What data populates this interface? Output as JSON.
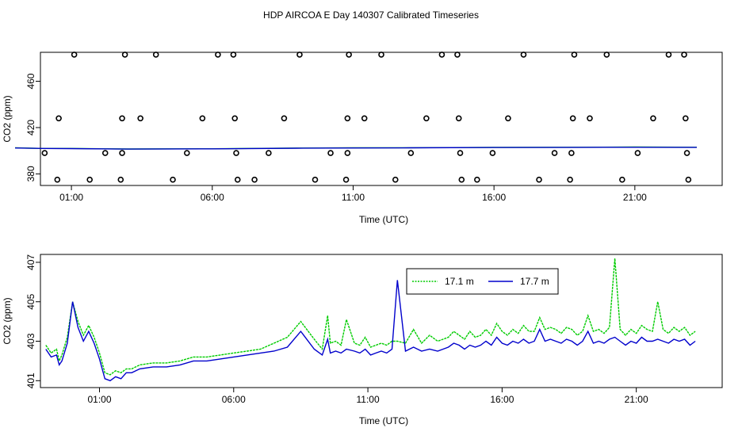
{
  "title": "HDP AIRCOA E  Day 140307  Calibrated Timeseries",
  "chart_data": [
    {
      "type": "scatter",
      "xlabel": "Time (UTC)",
      "ylabel": "CO2 (ppm)",
      "x_ticks": [
        {
          "hour": 1,
          "label": "01:00"
        },
        {
          "hour": 6,
          "label": "06:00"
        },
        {
          "hour": 11,
          "label": "11:00"
        },
        {
          "hour": 16,
          "label": "16:00"
        },
        {
          "hour": 21,
          "label": "21:00"
        }
      ],
      "y_ticks": [
        380,
        420,
        460
      ],
      "x_range_hours": [
        -0.1,
        24.1
      ],
      "y_range": [
        370,
        485
      ],
      "grid": false,
      "calibration_points": [
        {
          "hour": 0.5,
          "co2": 375
        },
        {
          "hour": 0.05,
          "co2": 398
        },
        {
          "hour": 0.55,
          "co2": 428
        },
        {
          "hour": 1.1,
          "co2": 483
        },
        {
          "hour": 1.65,
          "co2": 375
        },
        {
          "hour": 2.2,
          "co2": 398
        },
        {
          "hour": 2.75,
          "co2": 375
        },
        {
          "hour": 2.8,
          "co2": 398
        },
        {
          "hour": 2.8,
          "co2": 428
        },
        {
          "hour": 2.9,
          "co2": 483
        },
        {
          "hour": 3.45,
          "co2": 428
        },
        {
          "hour": 4.0,
          "co2": 483
        },
        {
          "hour": 4.6,
          "co2": 375
        },
        {
          "hour": 5.1,
          "co2": 398
        },
        {
          "hour": 5.65,
          "co2": 428
        },
        {
          "hour": 6.2,
          "co2": 483
        },
        {
          "hour": 6.75,
          "co2": 483
        },
        {
          "hour": 6.8,
          "co2": 428
        },
        {
          "hour": 6.85,
          "co2": 398
        },
        {
          "hour": 6.9,
          "co2": 375
        },
        {
          "hour": 7.5,
          "co2": 375
        },
        {
          "hour": 8.0,
          "co2": 398
        },
        {
          "hour": 8.55,
          "co2": 428
        },
        {
          "hour": 9.1,
          "co2": 483
        },
        {
          "hour": 9.65,
          "co2": 375
        },
        {
          "hour": 10.2,
          "co2": 398
        },
        {
          "hour": 10.75,
          "co2": 375
        },
        {
          "hour": 10.8,
          "co2": 398
        },
        {
          "hour": 10.8,
          "co2": 428
        },
        {
          "hour": 10.85,
          "co2": 483
        },
        {
          "hour": 11.4,
          "co2": 428
        },
        {
          "hour": 12.0,
          "co2": 483
        },
        {
          "hour": 12.5,
          "co2": 375
        },
        {
          "hour": 13.05,
          "co2": 398
        },
        {
          "hour": 13.6,
          "co2": 428
        },
        {
          "hour": 14.15,
          "co2": 483
        },
        {
          "hour": 14.7,
          "co2": 483
        },
        {
          "hour": 14.75,
          "co2": 428
        },
        {
          "hour": 14.8,
          "co2": 398
        },
        {
          "hour": 14.85,
          "co2": 375
        },
        {
          "hour": 15.4,
          "co2": 375
        },
        {
          "hour": 15.95,
          "co2": 398
        },
        {
          "hour": 16.5,
          "co2": 428
        },
        {
          "hour": 17.05,
          "co2": 483
        },
        {
          "hour": 17.6,
          "co2": 375
        },
        {
          "hour": 18.15,
          "co2": 398
        },
        {
          "hour": 18.7,
          "co2": 375
        },
        {
          "hour": 18.75,
          "co2": 398
        },
        {
          "hour": 18.8,
          "co2": 428
        },
        {
          "hour": 18.85,
          "co2": 483
        },
        {
          "hour": 19.4,
          "co2": 428
        },
        {
          "hour": 20.0,
          "co2": 483
        },
        {
          "hour": 20.55,
          "co2": 375
        },
        {
          "hour": 21.1,
          "co2": 398
        },
        {
          "hour": 21.65,
          "co2": 428
        },
        {
          "hour": 22.2,
          "co2": 483
        },
        {
          "hour": 22.75,
          "co2": 483
        },
        {
          "hour": 22.8,
          "co2": 428
        },
        {
          "hour": 22.85,
          "co2": 398
        },
        {
          "hour": 22.9,
          "co2": 375
        }
      ],
      "series": [
        {
          "color": "#00cc00",
          "hours": [
            -1,
            0,
            1,
            3,
            6,
            9,
            11,
            13,
            16,
            19,
            21,
            23.2
          ],
          "values": [
            402.5,
            402,
            402,
            401.5,
            401.7,
            402.3,
            402.5,
            402.6,
            402.9,
            403,
            403.2,
            403
          ]
        },
        {
          "color": "#0000cc",
          "hours": [
            -1,
            0,
            1,
            3,
            6,
            9,
            11,
            13,
            16,
            19,
            21,
            23.2
          ],
          "values": [
            402.4,
            402,
            401.8,
            401.4,
            401.6,
            402.2,
            402.4,
            402.5,
            402.8,
            402.9,
            403,
            402.9
          ]
        }
      ]
    },
    {
      "type": "line",
      "xlabel": "Time (UTC)",
      "ylabel": "CO2 (ppm)",
      "x_ticks": [
        {
          "hour": 1,
          "label": "01:00"
        },
        {
          "hour": 6,
          "label": "06:00"
        },
        {
          "hour": 11,
          "label": "11:00"
        },
        {
          "hour": 16,
          "label": "16:00"
        },
        {
          "hour": 21,
          "label": "21:00"
        }
      ],
      "y_ticks": [
        401,
        403,
        405,
        407
      ],
      "x_range_hours": [
        -1.2,
        24.2
      ],
      "y_range": [
        400.65,
        407.4
      ],
      "grid": false,
      "legend": {
        "position": "top-center"
      },
      "series": [
        {
          "name": "17.1 m",
          "color": "#00cc00",
          "hours": [
            -1.0,
            -0.8,
            -0.6,
            -0.5,
            -0.4,
            -0.2,
            0.0,
            0.2,
            0.4,
            0.6,
            0.8,
            1.0,
            1.2,
            1.4,
            1.6,
            1.8,
            2.0,
            2.2,
            2.5,
            3.0,
            3.5,
            4.0,
            4.5,
            5.0,
            5.5,
            6.0,
            6.5,
            7.0,
            7.5,
            8.0,
            8.5,
            9.0,
            9.3,
            9.5,
            9.6,
            9.8,
            10.0,
            10.2,
            10.5,
            10.7,
            10.9,
            11.1,
            11.3,
            11.5,
            11.7,
            11.9,
            12.1,
            12.4,
            12.7,
            13.0,
            13.3,
            13.6,
            13.8,
            14.0,
            14.2,
            14.4,
            14.6,
            14.8,
            15.0,
            15.2,
            15.4,
            15.6,
            15.8,
            16.0,
            16.2,
            16.4,
            16.6,
            16.8,
            17.0,
            17.2,
            17.4,
            17.6,
            17.8,
            18.0,
            18.2,
            18.4,
            18.6,
            18.8,
            19.0,
            19.2,
            19.4,
            19.6,
            19.8,
            20.0,
            20.2,
            20.4,
            20.6,
            20.8,
            21.0,
            21.2,
            21.4,
            21.6,
            21.8,
            22.0,
            22.2,
            22.4,
            22.6,
            22.8,
            23.0,
            23.2
          ],
          "values": [
            402.8,
            402.4,
            402.6,
            402.0,
            402.3,
            403.2,
            405.0,
            404.0,
            403.3,
            403.8,
            403.2,
            402.4,
            401.4,
            401.3,
            401.5,
            401.4,
            401.6,
            401.6,
            401.8,
            401.9,
            401.9,
            402.0,
            402.2,
            402.2,
            402.3,
            402.4,
            402.5,
            402.6,
            402.9,
            403.2,
            404.0,
            403.1,
            402.6,
            404.3,
            402.9,
            403.0,
            402.8,
            404.1,
            402.9,
            402.8,
            403.2,
            402.7,
            402.8,
            402.9,
            402.8,
            403.0,
            403.0,
            402.9,
            403.6,
            402.9,
            403.3,
            403.0,
            403.1,
            403.2,
            403.5,
            403.3,
            403.1,
            403.5,
            403.2,
            403.3,
            403.6,
            403.3,
            403.9,
            403.5,
            403.3,
            403.6,
            403.4,
            403.8,
            403.5,
            403.5,
            404.2,
            403.6,
            403.7,
            403.6,
            403.4,
            403.7,
            403.6,
            403.3,
            403.5,
            404.3,
            403.5,
            403.6,
            403.4,
            403.7,
            407.2,
            403.6,
            403.3,
            403.6,
            403.4,
            403.8,
            403.6,
            403.5,
            405.0,
            403.6,
            403.4,
            403.7,
            403.5,
            403.7,
            403.3,
            403.5
          ]
        },
        {
          "name": "17.7 m",
          "color": "#0000cc",
          "hours": [
            -1.0,
            -0.8,
            -0.6,
            -0.5,
            -0.4,
            -0.2,
            0.0,
            0.2,
            0.4,
            0.6,
            0.8,
            1.0,
            1.2,
            1.4,
            1.6,
            1.8,
            2.0,
            2.2,
            2.5,
            3.0,
            3.5,
            4.0,
            4.5,
            5.0,
            5.5,
            6.0,
            6.5,
            7.0,
            7.5,
            8.0,
            8.5,
            9.0,
            9.3,
            9.5,
            9.6,
            9.8,
            10.0,
            10.2,
            10.5,
            10.7,
            10.9,
            11.1,
            11.3,
            11.5,
            11.7,
            11.9,
            12.1,
            12.4,
            12.7,
            13.0,
            13.3,
            13.6,
            13.8,
            14.0,
            14.2,
            14.4,
            14.6,
            14.8,
            15.0,
            15.2,
            15.4,
            15.6,
            15.8,
            16.0,
            16.2,
            16.4,
            16.6,
            16.8,
            17.0,
            17.2,
            17.4,
            17.6,
            17.8,
            18.0,
            18.2,
            18.4,
            18.6,
            18.8,
            19.0,
            19.2,
            19.4,
            19.6,
            19.8,
            20.0,
            20.2,
            20.4,
            20.6,
            20.8,
            21.0,
            21.2,
            21.4,
            21.6,
            21.8,
            22.0,
            22.2,
            22.4,
            22.6,
            22.8,
            23.0,
            23.2
          ],
          "values": [
            402.6,
            402.2,
            402.3,
            401.8,
            402.0,
            402.9,
            405.0,
            403.7,
            403.0,
            403.5,
            402.9,
            402.1,
            401.1,
            401.0,
            401.2,
            401.1,
            401.4,
            401.4,
            401.6,
            401.7,
            401.7,
            401.8,
            402.0,
            402.0,
            402.1,
            402.2,
            402.3,
            402.4,
            402.5,
            402.7,
            403.5,
            402.6,
            402.3,
            403.1,
            402.4,
            402.5,
            402.4,
            402.6,
            402.5,
            402.4,
            402.6,
            402.3,
            402.4,
            402.5,
            402.4,
            402.6,
            406.1,
            402.5,
            402.7,
            402.5,
            402.6,
            402.5,
            402.6,
            402.7,
            402.9,
            402.8,
            402.6,
            402.8,
            402.7,
            402.8,
            403.0,
            402.8,
            403.2,
            402.9,
            402.8,
            403.0,
            402.9,
            403.1,
            402.9,
            403.0,
            403.6,
            403.0,
            403.1,
            403.0,
            402.9,
            403.1,
            403.0,
            402.8,
            403.0,
            403.5,
            402.9,
            403.0,
            402.9,
            403.1,
            403.2,
            403.0,
            402.8,
            403.0,
            402.9,
            403.2,
            403.0,
            403.0,
            403.1,
            403.0,
            402.9,
            403.1,
            403.0,
            403.1,
            402.8,
            403.0
          ]
        }
      ]
    }
  ]
}
